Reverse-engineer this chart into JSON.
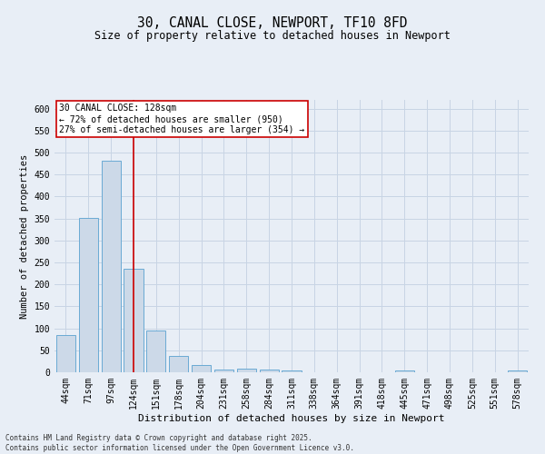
{
  "title": "30, CANAL CLOSE, NEWPORT, TF10 8FD",
  "subtitle": "Size of property relative to detached houses in Newport",
  "xlabel": "Distribution of detached houses by size in Newport",
  "ylabel": "Number of detached properties",
  "footer_line1": "Contains HM Land Registry data © Crown copyright and database right 2025.",
  "footer_line2": "Contains public sector information licensed under the Open Government Licence v3.0.",
  "categories": [
    "44sqm",
    "71sqm",
    "97sqm",
    "124sqm",
    "151sqm",
    "178sqm",
    "204sqm",
    "231sqm",
    "258sqm",
    "284sqm",
    "311sqm",
    "338sqm",
    "364sqm",
    "391sqm",
    "418sqm",
    "445sqm",
    "471sqm",
    "498sqm",
    "525sqm",
    "551sqm",
    "578sqm"
  ],
  "values": [
    85,
    352,
    481,
    236,
    95,
    37,
    16,
    7,
    8,
    7,
    4,
    0,
    0,
    0,
    0,
    5,
    0,
    0,
    0,
    0,
    5
  ],
  "bar_color": "#ccd9e8",
  "bar_edge_color": "#6aaad4",
  "grid_color": "#c8d4e4",
  "bg_color": "#e8eef6",
  "red_line_index": 3,
  "annotation_text_line1": "30 CANAL CLOSE: 128sqm",
  "annotation_text_line2": "← 72% of detached houses are smaller (950)",
  "annotation_text_line3": "27% of semi-detached houses are larger (354) →",
  "annotation_box_color": "#ffffff",
  "annotation_box_edge": "#cc0000",
  "red_line_color": "#cc0000",
  "ylim": [
    0,
    620
  ],
  "yticks": [
    0,
    50,
    100,
    150,
    200,
    250,
    300,
    350,
    400,
    450,
    500,
    550,
    600
  ],
  "title_fontsize": 10.5,
  "subtitle_fontsize": 8.5,
  "xlabel_fontsize": 8,
  "ylabel_fontsize": 7.5,
  "tick_fontsize": 7,
  "footer_fontsize": 5.5,
  "annotation_fontsize": 7
}
